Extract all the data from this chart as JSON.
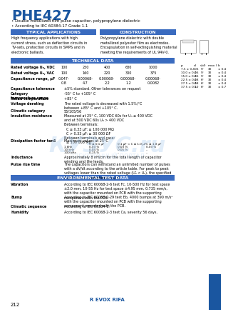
{
  "title": "PHE427",
  "subtitle_lines": [
    "• Double metallized film pulse capacitor, polypropylene dielectric",
    "• According to IEC 60384-17 Grade 1.1"
  ],
  "blue_color": "#1a56a0",
  "light_blue_header": "#3a6bbf",
  "header_text_color": "#ffffff",
  "section_headers": [
    "TYPICAL APPLICATIONS",
    "CONSTRUCTION",
    "TECHNICAL DATA"
  ],
  "typical_apps_text": "High frequency applications with high\ncurrent stress, such as deflection circuits in\nTV-sets, protection circuits in SMPS and in\nelectronic ballasts.",
  "construction_text": "Polypropylene dielectric with double\nmetallized polyester film as electrodes.\nEncapsulation in self-extinguishing material\nmeeting the requirements of UL 94V-0.",
  "tech_data_rows": [
    [
      "Rated voltage Uₙ, VDC",
      "100",
      "250",
      "400",
      "630",
      "1000"
    ],
    [
      "Rated voltage Uₙ, VAC",
      "100",
      "160",
      "220",
      "300",
      "375"
    ],
    [
      "Capacitance range, µF",
      "0.047-\n0.8",
      "0.00068-\n4.7",
      "0.00068-\n2.2",
      "0.00068-\n1.2",
      "0.00068-\n0.0082"
    ]
  ],
  "cap_tolerance": "Capacitance tolerance",
  "cap_tolerance_text": "±5% standard. Other tolerances on request",
  "category_label": "Category\ntemperature range",
  "category_text": "-55° C to +105° C",
  "rated_temp_label": "Rated temperature",
  "rated_temp_text": "+85° C",
  "voltage_derating_label": "Voltage derating",
  "voltage_derating_text": "The rated voltage is decreased with 1.5%/°C\nbetween +85° C and +105° C.",
  "climatic_label": "Climatic category",
  "climatic_text": "55/105/56",
  "insulation_label": "Insulation resistance",
  "insulation_text": "Measured at 25° C, 100 VDC 60s for Uₙ ≤ 400 VDC\nand at 500 VDC 60s Uₙ > 400 VDC\nBetween terminals:\n  C ≤ 0.33 µF: ≥ 100 000 MΩ\n  C > 0.33 µF: ≥ 30 000 ΩF\nBetween terminals and case:\n  ≥ 100 000 MΩ",
  "dissipation_label": "Dissipation factor tanδ",
  "dissipation_text": "Maximum values at 25°C",
  "dissipation_table": {
    "headers": [
      "",
      "C ≤ 0.1 µF",
      "0.1 µF < C ≤ 1.0 µF",
      "C ≥ 1.0 µF"
    ],
    "rows": [
      [
        "1 kHz",
        "0.03 %",
        "0.03 %",
        "0.03 %"
      ],
      [
        "10 kHz",
        "0.04 %",
        "0.06 %",
        "–"
      ],
      [
        "100 kHz",
        "0.15 %",
        "–",
        "–"
      ]
    ]
  },
  "inductance_label": "Inductance",
  "inductance_text": "Approximately 8 nH/cm for the total length of capacitor\nwinding and the leads.",
  "pulse_label": "Pulse rise time",
  "pulse_text": "The capacitors can withstand an unlimited number of pulses\nwith a dV/dt according to the article table. For peak to peak\nvoltages lower than the rated voltage (Uₙ̂ < Uₙ), the specified\ndV/dt can be multiplied to Uₙ/Uₙ̂.",
  "env_header": "ENVIRONMENTAL TEST DATA",
  "vibration_label": "Vibration",
  "vibration_text": "According to IEC 60068-2-6 test Fc, 10-500 Hz for test space\n±2.0 mm, 10-55 Hz for test space ±4.95 mm, 0.735 mm/s,\nwith the capacitor mounted on PCB with the supporting\ncomponent with the PCB.",
  "bump_label": "Bump",
  "bump_text": "According to IEC 60068-2-29 test Eb, 4000 bumps at 390 m/s²\nwith the capacitor mounted on PCB with the supporting\ncomponent mounted with the PCB.",
  "climatic2_label": "Climatic sequence",
  "climatic2_text": "According to IEC 60384-1.",
  "humidity_label": "Humidity",
  "humidity_text": "According to IEC 60068-2-3 test Ca, severity 56 days.",
  "dim_table": {
    "headers": [
      "p",
      "d",
      "s(d)",
      "max l",
      "b"
    ],
    "rows": [
      [
        "7.5 ± 0.4",
        "0.6",
        "5°",
        "30",
        "± 0.4"
      ],
      [
        "10.0 ± 0.4",
        "0.6",
        "5°",
        "30",
        "± 0.4"
      ],
      [
        "15.0 ± 0.4",
        "0.6",
        "5°",
        "30",
        "± 0.4"
      ],
      [
        "22.5 ± 0.4",
        "0.8",
        "6°",
        "30",
        "± 0.4"
      ],
      [
        "27.5 ± 0.4",
        "0.8",
        "6°",
        "30",
        "± 0.4"
      ],
      [
        "37.5 ± 0.5",
        "1.0",
        "6°",
        "30",
        "± 0.7"
      ]
    ]
  },
  "page_number": "212",
  "watermark_text": "КУЗУС.ru",
  "watermark_subtext": "ЭЛЕКТРОННЫЙ ПОРТАЛ"
}
